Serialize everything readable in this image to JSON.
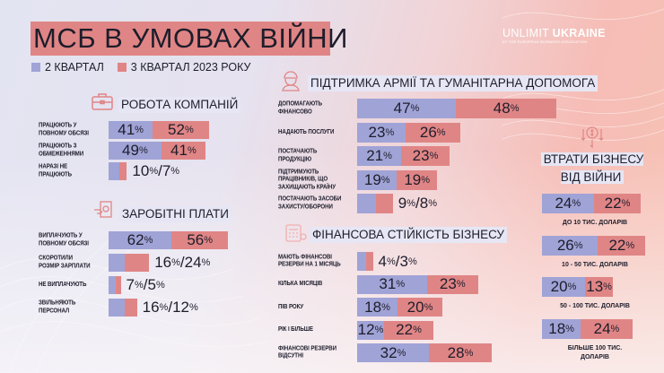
{
  "title": "МСБ В УМОВАХ ВІЙНИ",
  "legend": [
    {
      "label": "2 КВАРТАЛ",
      "color": "#a0a3d6"
    },
    {
      "label": "3 КВАРТАЛ 2023 РОКУ",
      "color": "#e08585"
    }
  ],
  "logo": {
    "light": "UNLIMIT ",
    "bold": "UKRAINE",
    "sub": "BY THE EUROPEAN BUSINESS ASSOCIATION"
  },
  "colors": {
    "q2": "#a0a3d6",
    "q3": "#e08585"
  },
  "chart_data": [
    {
      "type": "bar",
      "id": "work",
      "title": "РОБОТА КОМПАНІЙ",
      "icon": "briefcase-icon",
      "unit": "%",
      "series": [
        "2 квартал",
        "3 квартал 2023 року"
      ],
      "rows": [
        {
          "label": "ПРАЦЮЮТЬ У\nПОВНОМУ ОБСЯЗІ",
          "q2": 41,
          "q3": 52
        },
        {
          "label": "ПРАЦЮЮТЬ З\nОБМЕЖЕННЯМИ",
          "q2": 49,
          "q3": 41
        },
        {
          "label": "НАРАЗІ НЕ\nПРАЦЮЮТЬ",
          "q2": 10,
          "q3": 7,
          "combined": true
        }
      ]
    },
    {
      "type": "bar",
      "id": "wages",
      "title": "ЗАРОБІТНІ ПЛАТИ",
      "icon": "salary-icon",
      "unit": "%",
      "series": [
        "2 квартал",
        "3 квартал 2023 року"
      ],
      "rows": [
        {
          "label": "ВИПЛАЧУЮТЬ У\nПОВНОМУ ОБСЯЗІ",
          "q2": 62,
          "q3": 56
        },
        {
          "label": "СКОРОТИЛИ\nРОЗМІР ЗАРПЛАТИ",
          "q2": 16,
          "q3": 24,
          "combined": true
        },
        {
          "label": "НЕ ВИПЛАЧУЮТЬ",
          "q2": 7,
          "q3": 5,
          "combined": true
        },
        {
          "label": "ЗВІЛЬНЯЮТЬ\nПЕРСОНАЛ",
          "q2": 16,
          "q3": 12,
          "combined": true
        }
      ]
    },
    {
      "type": "bar",
      "id": "army",
      "title": "ПІДТРИМКА АРМІЇ ТА ГУМАНІТАРНА ДОПОМОГА",
      "icon": "soldier-icon",
      "unit": "%",
      "series": [
        "2 квартал",
        "3 квартал 2023 року"
      ],
      "rows": [
        {
          "label": "ДОПОМАГАЮТЬ\nФІНАНСОВО",
          "q2": 47,
          "q3": 48
        },
        {
          "label": "НАДАЮТЬ ПОСЛУГИ",
          "q2": 23,
          "q3": 26
        },
        {
          "label": "ПОСТАЧАЮТЬ\nПРОДУКЦІЮ",
          "q2": 21,
          "q3": 23
        },
        {
          "label": "ПІДТРИМУЮТЬ\nПРАЦІВНИКІВ, ЩО\nЗАХИЩАЮТЬ КРАЇНУ",
          "q2": 19,
          "q3": 19
        },
        {
          "label": "ПОСТАЧАЮТЬ ЗАСОБИ\nЗАХИСТУ/ОБОРОНИ",
          "q2": 9,
          "q3": 8,
          "combined": true
        }
      ]
    },
    {
      "type": "bar",
      "id": "finance",
      "title": "ФІНАНСОВА СТІЙКІСТЬ БІЗНЕСУ",
      "icon": "calculator-icon",
      "unit": "%",
      "series": [
        "2 квартал",
        "3 квартал 2023 року"
      ],
      "rows": [
        {
          "label": "МАЮТЬ ФІНАНСОВІ\nРЕЗЕРВИ НА 1 МІСЯЦЬ",
          "q2": 4,
          "q3": 3,
          "combined": true
        },
        {
          "label": "КІЛЬКА МІСЯЦІВ",
          "q2": 31,
          "q3": 23
        },
        {
          "label": "ПІВ РОКУ",
          "q2": 18,
          "q3": 20
        },
        {
          "label": "РІК І БІЛЬШЕ",
          "q2": 12,
          "q3": 22
        },
        {
          "label": "ФІНАНСОВІ РЕЗЕРВИ\nВІДСУТНІ",
          "q2": 32,
          "q3": 28
        }
      ]
    },
    {
      "type": "bar",
      "id": "losses",
      "title": "ВТРАТИ БІЗНЕСУ\nВІД ВІЙНИ",
      "icon": "money-loss-icon",
      "unit": "%",
      "series": [
        "2 квартал",
        "3 квартал 2023 року"
      ],
      "rows": [
        {
          "label": "ДО 10 ТИС. ДОЛАРІВ",
          "q2": 24,
          "q3": 22
        },
        {
          "label": "10 - 50 ТИС. ДОЛАРІВ",
          "q2": 26,
          "q3": 22
        },
        {
          "label": "50 - 100 ТИС. ДОЛАРІВ",
          "q2": 20,
          "q3": 13
        },
        {
          "label": "БІЛЬШЕ 100 ТИС.\nДОЛАРІВ",
          "q2": 18,
          "q3": 24
        }
      ]
    }
  ]
}
